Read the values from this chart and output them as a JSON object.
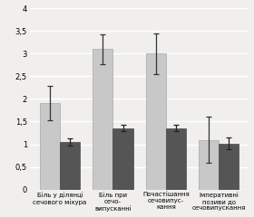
{
  "categories": [
    "Біль у ділянці\nсечового міхура",
    "Біль при\nсечо-\nвипусканні",
    "Почастішання\nсечовипус-\nкання",
    "Імперативні\nпозиви до\nсечовипускання"
  ],
  "values_light": [
    1.9,
    3.1,
    3.0,
    1.1
  ],
  "values_dark": [
    1.05,
    1.35,
    1.35,
    1.02
  ],
  "errors_light": [
    0.38,
    0.33,
    0.45,
    0.5
  ],
  "errors_dark": [
    0.08,
    0.07,
    0.07,
    0.13
  ],
  "color_light": "#c8c8c8",
  "color_dark": "#555555",
  "ylim": [
    0,
    4
  ],
  "yticks": [
    0,
    0.5,
    1,
    1.5,
    2,
    2.5,
    3,
    3.5,
    4
  ],
  "ytick_labels": [
    "0",
    "0,5",
    "1",
    "1,5",
    "2",
    "2,5",
    "3",
    "3,5",
    "4"
  ],
  "bar_width": 0.38,
  "background_color": "#f0efee",
  "grid_color": "#ffffff",
  "tick_fontsize": 6.0,
  "label_fontsize": 5.0
}
